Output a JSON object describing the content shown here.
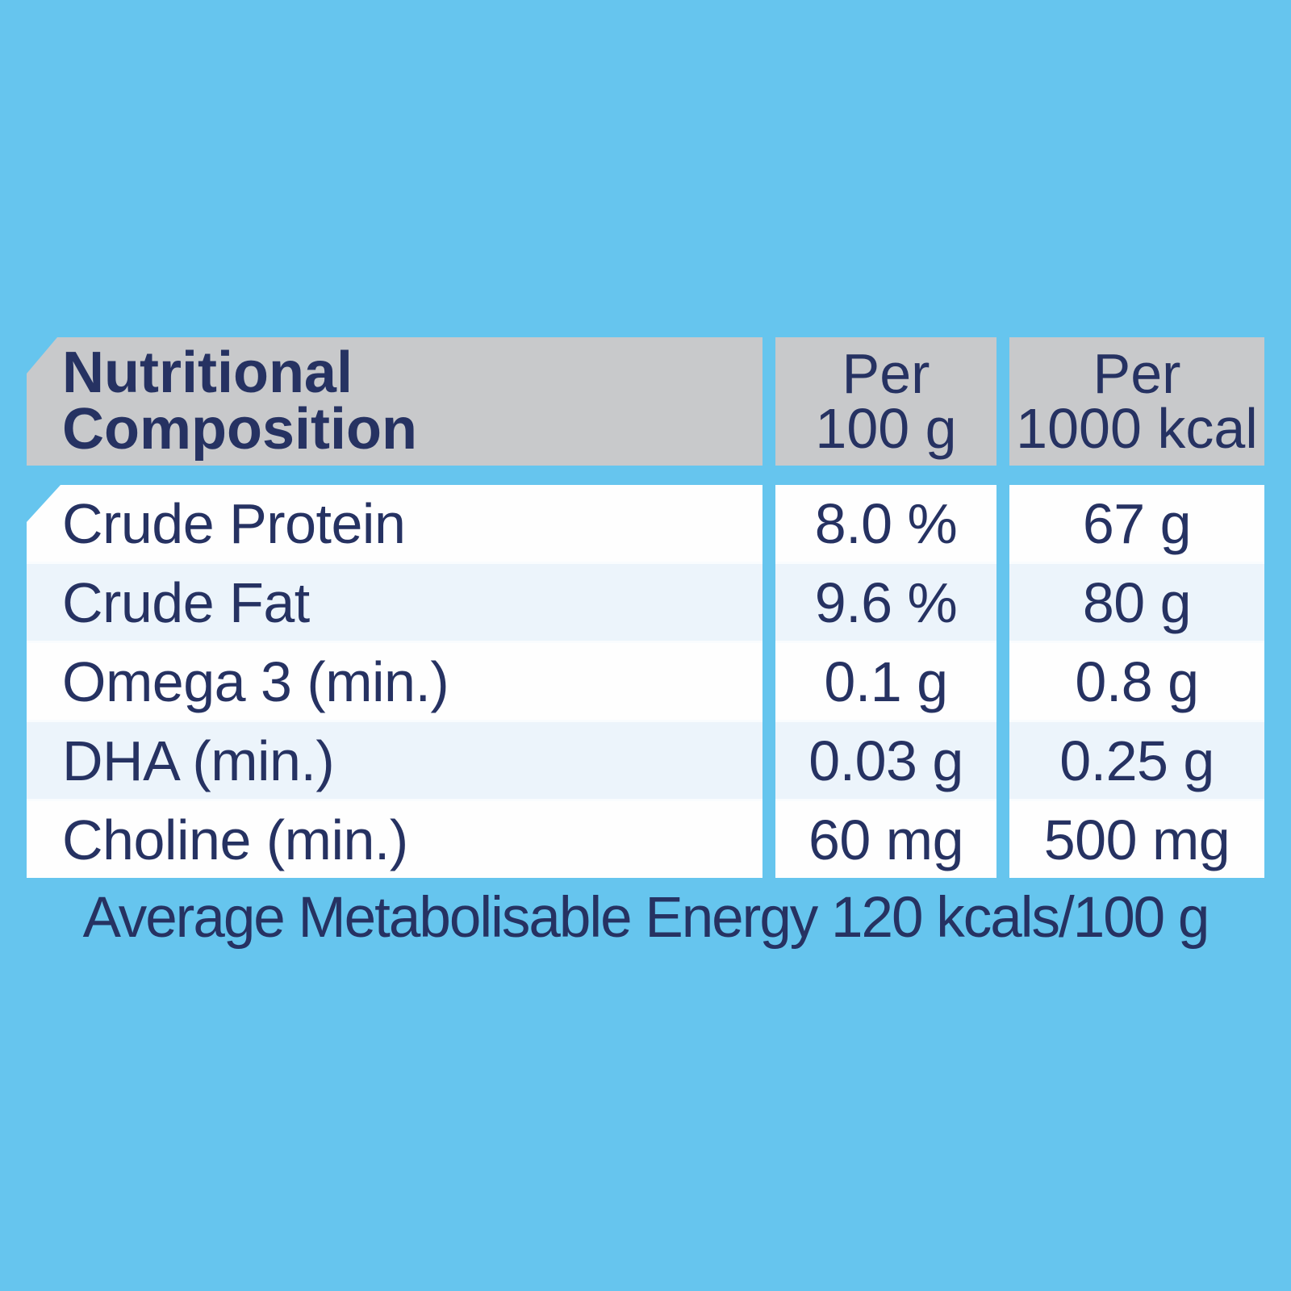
{
  "colors": {
    "background_blue": "#66c5ee",
    "header_gray": "#c8c9cb",
    "text_navy": "#263262",
    "row_white": "#fefefe",
    "row_pale_blue": "#ecf4fb"
  },
  "table": {
    "header": {
      "title_line1": "Nutritional",
      "title_line2": "Composition",
      "col2_line1": "Per",
      "col2_line2": "100 g",
      "col3_line1": "Per",
      "col3_line2": "1000 kcal"
    },
    "rows": [
      {
        "label": "Crude Protein",
        "per_100g": "8.0 %",
        "per_1000kcal": "67 g"
      },
      {
        "label": "Crude Fat",
        "per_100g": "9.6 %",
        "per_1000kcal": "80 g"
      },
      {
        "label": "Omega 3 (min.)",
        "per_100g": "0.1 g",
        "per_1000kcal": "0.8 g"
      },
      {
        "label": "DHA (min.)",
        "per_100g": "0.03 g",
        "per_1000kcal": "0.25 g"
      },
      {
        "label": "Choline (min.)",
        "per_100g": "60 mg",
        "per_1000kcal": "500 mg"
      }
    ]
  },
  "footer": {
    "text": "Average Metabolisable Energy 120 kcals/100 g"
  }
}
